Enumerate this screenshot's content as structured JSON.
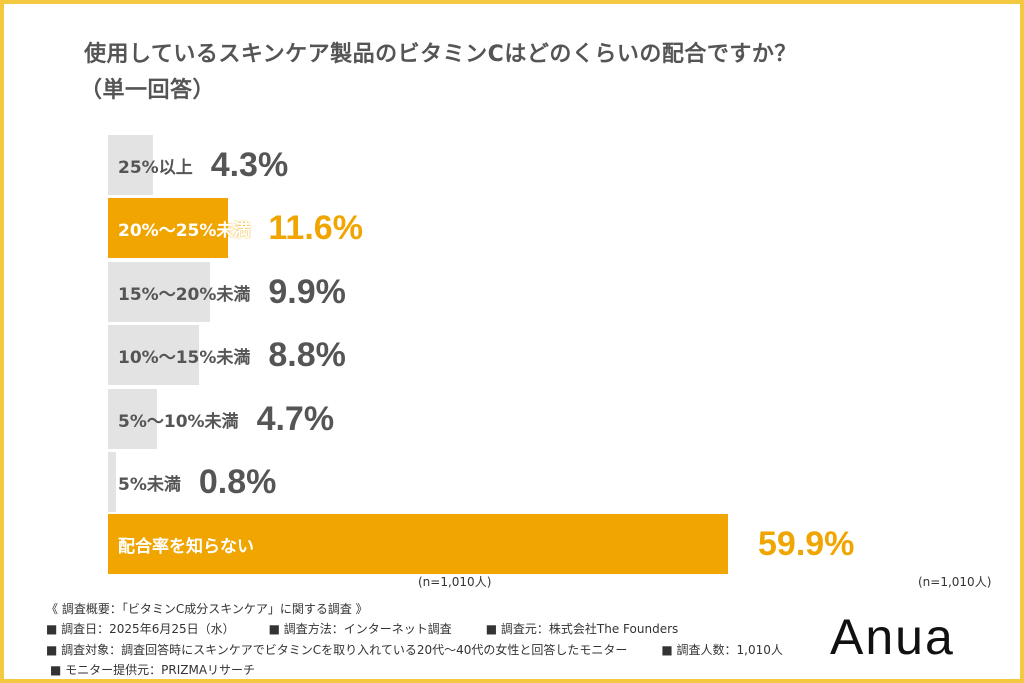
{
  "chart_data": {
    "type": "bar",
    "orientation": "horizontal",
    "title": "使用しているスキンケア製品のビタミンCはどのくらいの配合ですか？",
    "subtitle": "（単一回答）",
    "categories": [
      "25%以上",
      "20%～25%未満",
      "15%～20%未満",
      "10%～15%未満",
      "5%～10%未満",
      "5%未満",
      "配合率を知らない"
    ],
    "values": [
      4.3,
      11.6,
      9.9,
      8.8,
      4.7,
      0.8,
      59.9
    ],
    "value_labels": [
      "4.3%",
      "11.6%",
      "9.9%",
      "8.8%",
      "4.7%",
      "0.8%",
      "59.9%"
    ],
    "highlighted": [
      false,
      true,
      false,
      false,
      false,
      false,
      true
    ],
    "unit": "%",
    "xlim": [
      0,
      60
    ],
    "grid": false,
    "colors": {
      "default": "#e3e3e3",
      "highlight": "#f0a500",
      "text": "#555555"
    }
  },
  "n_labels": [
    "(n=1,010人)",
    "(n=1,010人)"
  ],
  "footer": {
    "line1": "《 調査概要：「ビタミンC成分スキンケア」に関する調査 》",
    "line2": [
      "■ 調査日：2025年6月25日（水）",
      "■ 調査方法：インターネット調査",
      "■ 調査元：株式会社The Founders"
    ],
    "line3": [
      "■ 調査対象：調査回答時にスキンケアでビタミンCを取り入れている20代～40代の女性と回答したモニター",
      "■ 調査人数：1,010人"
    ],
    "line4": "■ モニター提供元：PRIZMAリサーチ"
  },
  "logo": "Anua",
  "frame_color": "#f5c842"
}
